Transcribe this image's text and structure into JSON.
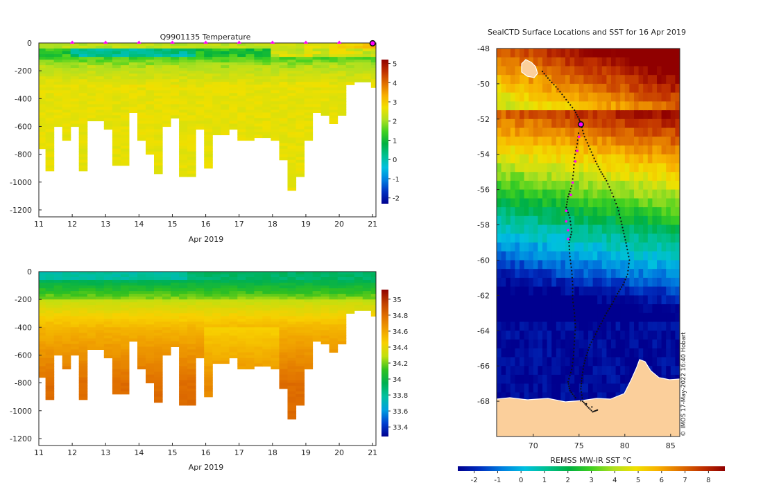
{
  "colors": {
    "temperature_scale": [
      "#00008f",
      "#0030c0",
      "#0080e0",
      "#00c0e0",
      "#00c090",
      "#00b040",
      "#40d020",
      "#b0e020",
      "#f0e000",
      "#f8b000",
      "#e07000",
      "#c03000",
      "#900000"
    ],
    "salinity_scale": [
      "#00008f",
      "#0040d0",
      "#00a0e0",
      "#00c0a0",
      "#00b050",
      "#30c020",
      "#c0e010",
      "#f8d000",
      "#f0a000",
      "#e07000",
      "#c04000",
      "#900000"
    ],
    "land": "#fbcf9b",
    "track_dot": "#101010",
    "profile_marker": "#ff00ff"
  },
  "chart_data": [
    {
      "id": "temperature_section",
      "type": "heatmap",
      "title": "Q9901135  Temperature",
      "xlabel": "Apr 2019",
      "ylabel": "",
      "xlim": [
        11,
        21.1
      ],
      "ylim": [
        -1250,
        0
      ],
      "x_ticks": [
        "11",
        "12",
        "13",
        "14",
        "15",
        "16",
        "17",
        "18",
        "19",
        "20",
        "21"
      ],
      "y_ticks": [
        "0",
        "-200",
        "-400",
        "-600",
        "-800",
        "-1000",
        "-1200"
      ],
      "colorbar_range": [
        -2.3,
        5.2
      ],
      "colorbar_ticks": [
        "5",
        "4",
        "3",
        "2",
        "1",
        "0",
        "-1",
        "-2"
      ],
      "profile_markers_x": [
        12,
        13,
        14,
        15,
        16,
        17,
        18,
        19,
        20
      ],
      "current_position_marker_x": 21,
      "profiles": [
        {
          "day": 11.05,
          "max_depth": 760
        },
        {
          "day": 11.3,
          "max_depth": 920
        },
        {
          "day": 11.55,
          "max_depth": 600
        },
        {
          "day": 11.8,
          "max_depth": 700
        },
        {
          "day": 12.05,
          "max_depth": 600
        },
        {
          "day": 12.3,
          "max_depth": 920
        },
        {
          "day": 12.55,
          "max_depth": 560
        },
        {
          "day": 12.8,
          "max_depth": 550
        },
        {
          "day": 13.05,
          "max_depth": 610
        },
        {
          "day": 13.3,
          "max_depth": 870
        },
        {
          "day": 13.55,
          "max_depth": 870
        },
        {
          "day": 13.8,
          "max_depth": 500
        },
        {
          "day": 14.05,
          "max_depth": 700
        },
        {
          "day": 14.3,
          "max_depth": 790
        },
        {
          "day": 14.55,
          "max_depth": 930
        },
        {
          "day": 14.8,
          "max_depth": 590
        },
        {
          "day": 15.05,
          "max_depth": 530
        },
        {
          "day": 15.3,
          "max_depth": 960
        },
        {
          "day": 15.55,
          "max_depth": 960
        },
        {
          "day": 15.8,
          "max_depth": 620
        },
        {
          "day": 16.05,
          "max_depth": 900
        },
        {
          "day": 16.3,
          "max_depth": 660
        },
        {
          "day": 16.55,
          "max_depth": 660
        },
        {
          "day": 16.8,
          "max_depth": 620
        },
        {
          "day": 17.05,
          "max_depth": 700
        },
        {
          "day": 17.3,
          "max_depth": 700
        },
        {
          "day": 17.55,
          "max_depth": 680
        },
        {
          "day": 17.8,
          "max_depth": 680
        },
        {
          "day": 18.05,
          "max_depth": 700
        },
        {
          "day": 18.3,
          "max_depth": 830
        },
        {
          "day": 18.55,
          "max_depth": 1060
        },
        {
          "day": 18.8,
          "max_depth": 960
        },
        {
          "day": 19.05,
          "max_depth": 700
        },
        {
          "day": 19.3,
          "max_depth": 500
        },
        {
          "day": 19.55,
          "max_depth": 510
        },
        {
          "day": 19.8,
          "max_depth": 570
        },
        {
          "day": 20.05,
          "max_depth": 510
        },
        {
          "day": 20.3,
          "max_depth": 300
        },
        {
          "day": 20.55,
          "max_depth": 280
        },
        {
          "day": 20.8,
          "max_depth": 280
        },
        {
          "day": 21.05,
          "max_depth": 320
        }
      ]
    },
    {
      "id": "salinity_section",
      "type": "heatmap",
      "title": "",
      "xlabel": "Apr 2019",
      "ylabel": "",
      "xlim": [
        11,
        21.1
      ],
      "ylim": [
        -1250,
        0
      ],
      "x_ticks": [
        "11",
        "12",
        "13",
        "14",
        "15",
        "16",
        "17",
        "18",
        "19",
        "20",
        "21"
      ],
      "y_ticks": [
        "0",
        "-200",
        "-400",
        "-600",
        "-800",
        "-1000",
        "-1200"
      ],
      "colorbar_range": [
        33.28,
        35.12
      ],
      "colorbar_ticks": [
        "35",
        "34.8",
        "34.6",
        "34.4",
        "34.2",
        "34",
        "33.8",
        "33.6",
        "33.4"
      ]
    },
    {
      "id": "sst_map",
      "type": "heatmap",
      "title": "SealCTD Surface Locations and SST for 16 Apr 2019",
      "xlabel": "",
      "ylabel": "",
      "xlim": [
        66,
        86
      ],
      "ylim": [
        -70,
        -48
      ],
      "x_ticks": [
        "70",
        "75",
        "80",
        "85"
      ],
      "y_ticks": [
        "-48",
        "-50",
        "-52",
        "-54",
        "-56",
        "-58",
        "-60",
        "-62",
        "-64",
        "-66",
        "-68"
      ],
      "colorbar_label": "REMSS MW-IR SST °C",
      "colorbar_range": [
        -2.7,
        8.7
      ],
      "colorbar_ticks": [
        "-2",
        "-1",
        "0",
        "1",
        "2",
        "3",
        "4",
        "5",
        "6",
        "7",
        "8"
      ],
      "watermark": "© IMOS 17-May-2022 16:40 Hobart",
      "current_position": {
        "lon": 75.2,
        "lat": -52.3
      },
      "track": [
        [
          71.0,
          -49.3
        ],
        [
          71.8,
          -49.8
        ],
        [
          72.7,
          -50.3
        ],
        [
          73.6,
          -50.9
        ],
        [
          74.5,
          -51.5
        ],
        [
          75.0,
          -52.0
        ],
        [
          75.2,
          -52.3
        ],
        [
          75.6,
          -53.0
        ],
        [
          76.2,
          -53.7
        ],
        [
          76.8,
          -54.4
        ],
        [
          77.4,
          -55.0
        ],
        [
          78.0,
          -55.5
        ],
        [
          78.6,
          -56.2
        ],
        [
          79.2,
          -57.0
        ],
        [
          79.6,
          -57.8
        ],
        [
          79.9,
          -58.5
        ],
        [
          80.2,
          -59.2
        ],
        [
          80.5,
          -60.0
        ],
        [
          80.3,
          -60.8
        ],
        [
          79.8,
          -61.4
        ],
        [
          79.2,
          -61.9
        ],
        [
          78.6,
          -62.5
        ],
        [
          78.0,
          -63.0
        ],
        [
          77.4,
          -63.6
        ],
        [
          76.8,
          -64.2
        ],
        [
          76.2,
          -64.8
        ],
        [
          75.8,
          -65.4
        ],
        [
          75.5,
          -66.0
        ],
        [
          75.3,
          -66.7
        ],
        [
          75.2,
          -67.3
        ],
        [
          75.4,
          -68.0
        ],
        [
          75.9,
          -68.3
        ],
        [
          76.5,
          -68.6
        ],
        [
          77.0,
          -68.5
        ],
        [
          74.6,
          -67.8
        ],
        [
          74.0,
          -67.4
        ],
        [
          73.8,
          -66.9
        ],
        [
          74.2,
          -66.2
        ],
        [
          74.4,
          -65.4
        ],
        [
          74.5,
          -64.6
        ],
        [
          74.6,
          -63.8
        ],
        [
          74.5,
          -63.0
        ],
        [
          74.3,
          -62.2
        ],
        [
          74.3,
          -61.4
        ],
        [
          74.2,
          -60.6
        ],
        [
          74.0,
          -59.8
        ],
        [
          73.9,
          -59.0
        ],
        [
          74.2,
          -58.4
        ],
        [
          74.0,
          -57.6
        ],
        [
          73.6,
          -57.0
        ],
        [
          73.8,
          -56.4
        ],
        [
          74.2,
          -55.8
        ],
        [
          74.4,
          -55.0
        ],
        [
          74.5,
          -54.2
        ],
        [
          74.8,
          -53.4
        ],
        [
          75.0,
          -52.6
        ]
      ],
      "recent_profiles": [
        [
          73.6,
          -57.2
        ],
        [
          73.6,
          -57.8
        ],
        [
          73.8,
          -58.3
        ],
        [
          73.8,
          -58.8
        ],
        [
          74.1,
          -56.3
        ],
        [
          74.3,
          -55.6
        ],
        [
          74.6,
          -54.4
        ],
        [
          74.8,
          -53.8
        ],
        [
          75.0,
          -53.0
        ]
      ]
    }
  ]
}
